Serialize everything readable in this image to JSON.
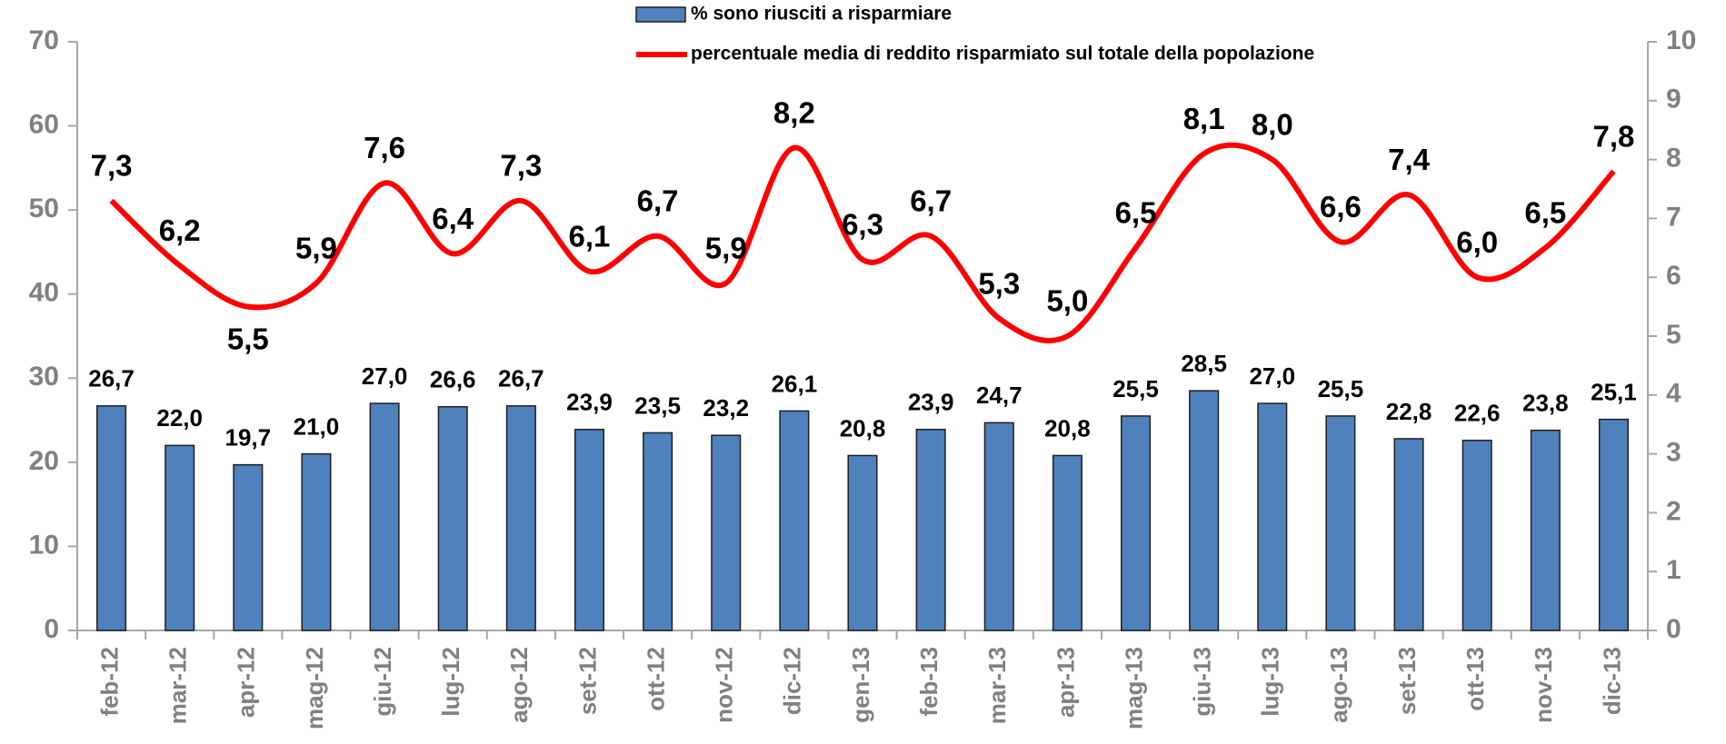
{
  "chart_data": {
    "type": "bar-line",
    "categories": [
      "feb-12",
      "mar-12",
      "apr-12",
      "mag-12",
      "giu-12",
      "lug-12",
      "ago-12",
      "set-12",
      "ott-12",
      "nov-12",
      "dic-12",
      "gen-13",
      "feb-13",
      "mar-13",
      "apr-13",
      "mag-13",
      "giu-13",
      "lug-13",
      "ago-13",
      "set-13",
      "ott-13",
      "nov-13",
      "dic-13"
    ],
    "series": [
      {
        "name": "% sono riusciti a risparmiare",
        "type": "bar",
        "color": "#4f81bd",
        "values": [
          26.7,
          22.0,
          19.7,
          21.0,
          27.0,
          26.6,
          26.7,
          23.9,
          23.5,
          23.2,
          26.1,
          20.8,
          23.9,
          24.7,
          20.8,
          25.5,
          28.5,
          27.0,
          25.5,
          22.8,
          22.6,
          23.8,
          25.1
        ],
        "value_labels": [
          "26,7",
          "22,0",
          "19,7",
          "21,0",
          "27,0",
          "26,6",
          "26,7",
          "23,9",
          "23,5",
          "23,2",
          "26,1",
          "20,8",
          "23,9",
          "24,7",
          "20,8",
          "25,5",
          "28,5",
          "27,0",
          "25,5",
          "22,8",
          "22,6",
          "23,8",
          "25,1"
        ]
      },
      {
        "name": "percentuale media di reddito risparmiato sul totale della popolazione",
        "type": "line",
        "color": "#ff0000",
        "axis": "y2",
        "values": [
          7.3,
          6.2,
          5.5,
          5.9,
          7.6,
          6.4,
          7.3,
          6.1,
          6.7,
          5.9,
          8.2,
          6.3,
          6.7,
          5.3,
          5.0,
          6.5,
          8.1,
          8.0,
          6.6,
          7.4,
          6.0,
          6.5,
          7.8
        ],
        "value_labels": [
          "7,3",
          "6,2",
          "5,5",
          "5,9",
          "7,6",
          "6,4",
          "7,3",
          "6,1",
          "6,7",
          "5,9",
          "8,2",
          "6,3",
          "6,7",
          "5,3",
          "5,0",
          "6,5",
          "8,1",
          "8,0",
          "6,6",
          "7,4",
          "6,0",
          "6,5",
          "7,8"
        ]
      }
    ],
    "ylim": [
      0,
      70
    ],
    "yticks": [
      0,
      10,
      20,
      30,
      40,
      50,
      60,
      70
    ],
    "y2lim": [
      0,
      10
    ],
    "y2ticks": [
      0,
      1,
      2,
      3,
      4,
      5,
      6,
      7,
      8,
      9,
      10
    ],
    "legend": "top"
  }
}
